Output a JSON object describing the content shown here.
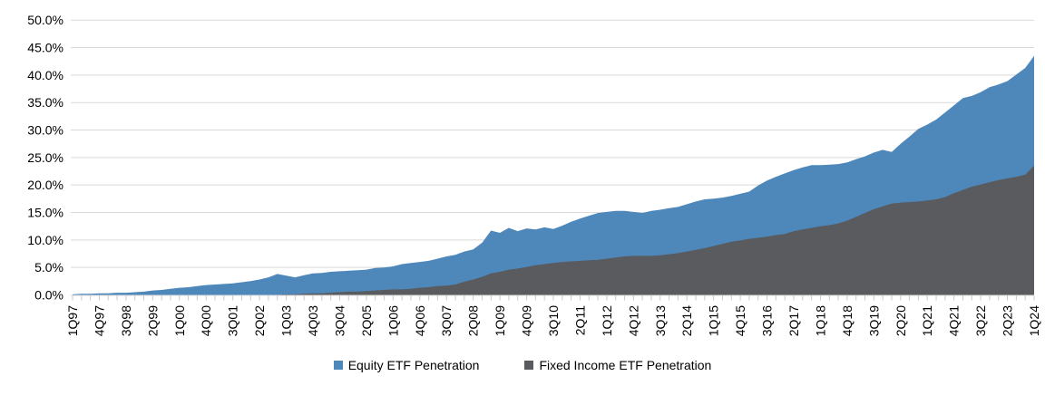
{
  "chart_data": {
    "type": "area",
    "title": "",
    "xlabel": "",
    "ylabel": "",
    "ylim": [
      0,
      50
    ],
    "grid": true,
    "overlapping_areas": true,
    "legend_position": "bottom",
    "x_tick_interval": 3,
    "y_ticks": [
      "0.0%",
      "5.0%",
      "10.0%",
      "15.0%",
      "20.0%",
      "25.0%",
      "30.0%",
      "35.0%",
      "40.0%",
      "45.0%",
      "50.0%"
    ],
    "categories": [
      "1Q97",
      "2Q97",
      "3Q97",
      "4Q97",
      "1Q98",
      "2Q98",
      "3Q98",
      "4Q98",
      "1Q99",
      "2Q99",
      "3Q99",
      "4Q99",
      "1Q00",
      "2Q00",
      "3Q00",
      "4Q00",
      "1Q01",
      "2Q01",
      "3Q01",
      "4Q01",
      "1Q02",
      "2Q02",
      "3Q02",
      "4Q02",
      "1Q03",
      "2Q03",
      "3Q03",
      "4Q03",
      "1Q04",
      "2Q04",
      "3Q04",
      "4Q04",
      "1Q05",
      "2Q05",
      "3Q05",
      "4Q05",
      "1Q06",
      "2Q06",
      "3Q06",
      "4Q06",
      "1Q07",
      "2Q07",
      "3Q07",
      "4Q07",
      "1Q08",
      "2Q08",
      "3Q08",
      "4Q08",
      "1Q09",
      "2Q09",
      "3Q09",
      "4Q09",
      "1Q10",
      "2Q10",
      "3Q10",
      "4Q10",
      "1Q11",
      "2Q11",
      "3Q11",
      "4Q11",
      "1Q12",
      "2Q12",
      "3Q12",
      "4Q12",
      "1Q13",
      "2Q13",
      "3Q13",
      "4Q13",
      "1Q14",
      "2Q14",
      "3Q14",
      "4Q14",
      "1Q15",
      "2Q15",
      "3Q15",
      "4Q15",
      "1Q16",
      "2Q16",
      "3Q16",
      "4Q16",
      "1Q17",
      "2Q17",
      "3Q17",
      "4Q17",
      "1Q18",
      "2Q18",
      "3Q18",
      "4Q18",
      "1Q19",
      "2Q19",
      "3Q19",
      "4Q19",
      "1Q20",
      "2Q20",
      "3Q20",
      "4Q20",
      "1Q21",
      "2Q21",
      "3Q21",
      "4Q21",
      "1Q22",
      "2Q22",
      "3Q22",
      "4Q22",
      "1Q23",
      "2Q23",
      "3Q23",
      "4Q23",
      "1Q24"
    ],
    "series": [
      {
        "name": "Equity ETF Penetration",
        "color": "#4e87ba",
        "values": [
          0.1,
          0.2,
          0.2,
          0.3,
          0.3,
          0.4,
          0.4,
          0.5,
          0.6,
          0.8,
          0.9,
          1.1,
          1.3,
          1.4,
          1.6,
          1.8,
          1.9,
          2.0,
          2.1,
          2.3,
          2.5,
          2.8,
          3.2,
          3.8,
          3.5,
          3.2,
          3.6,
          3.9,
          4.0,
          4.2,
          4.3,
          4.4,
          4.5,
          4.6,
          4.9,
          5.0,
          5.2,
          5.6,
          5.8,
          6.0,
          6.2,
          6.6,
          7.0,
          7.3,
          7.9,
          8.3,
          9.5,
          11.7,
          11.3,
          12.2,
          11.6,
          12.1,
          11.9,
          12.3,
          12.0,
          12.6,
          13.3,
          13.9,
          14.4,
          14.9,
          15.1,
          15.3,
          15.3,
          15.1,
          14.9,
          15.3,
          15.5,
          15.8,
          16.0,
          16.5,
          17.0,
          17.4,
          17.5,
          17.7,
          18.0,
          18.4,
          18.8,
          19.9,
          20.8,
          21.5,
          22.1,
          22.7,
          23.2,
          23.6,
          23.6,
          23.7,
          23.8,
          24.1,
          24.7,
          25.2,
          25.9,
          26.4,
          26.0,
          27.5,
          28.8,
          30.2,
          31.0,
          31.9,
          33.2,
          34.5,
          35.8,
          36.2,
          36.9,
          37.8,
          38.3,
          38.9,
          40.1,
          41.3,
          43.5
        ]
      },
      {
        "name": "Fixed Income ETF Penetration",
        "color": "#595b5e",
        "values": [
          0,
          0,
          0,
          0,
          0,
          0,
          0,
          0,
          0,
          0,
          0,
          0,
          0,
          0,
          0,
          0,
          0,
          0,
          0,
          0,
          0,
          0,
          0,
          0,
          0.1,
          0.1,
          0.2,
          0.3,
          0.3,
          0.4,
          0.5,
          0.6,
          0.6,
          0.7,
          0.8,
          0.9,
          1.0,
          1.0,
          1.1,
          1.3,
          1.4,
          1.6,
          1.7,
          1.9,
          2.4,
          2.8,
          3.3,
          3.9,
          4.2,
          4.6,
          4.8,
          5.1,
          5.4,
          5.6,
          5.8,
          6.0,
          6.1,
          6.2,
          6.3,
          6.4,
          6.6,
          6.8,
          7.0,
          7.1,
          7.1,
          7.1,
          7.2,
          7.4,
          7.6,
          7.9,
          8.2,
          8.5,
          8.9,
          9.3,
          9.7,
          9.9,
          10.2,
          10.4,
          10.6,
          10.9,
          11.1,
          11.6,
          11.9,
          12.2,
          12.5,
          12.7,
          13.0,
          13.5,
          14.2,
          14.9,
          15.6,
          16.1,
          16.6,
          16.8,
          16.9,
          17.0,
          17.2,
          17.4,
          17.8,
          18.5,
          19.1,
          19.7,
          20.1,
          20.5,
          20.9,
          21.2,
          21.5,
          21.9,
          23.5
        ]
      }
    ],
    "colors": {
      "gridline": "#d9d9d9",
      "axis": "#d9d9d9",
      "tick": "#c9c9c9",
      "text": "#000000"
    }
  }
}
